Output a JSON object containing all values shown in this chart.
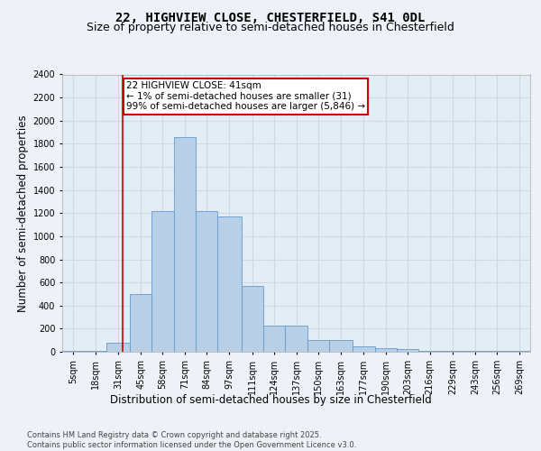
{
  "title_line1": "22, HIGHVIEW CLOSE, CHESTERFIELD, S41 0DL",
  "title_line2": "Size of property relative to semi-detached houses in Chesterfield",
  "xlabel": "Distribution of semi-detached houses by size in Chesterfield",
  "ylabel": "Number of semi-detached properties",
  "footnote": "Contains HM Land Registry data © Crown copyright and database right 2025.\nContains public sector information licensed under the Open Government Licence v3.0.",
  "bar_color": "#b8cfe8",
  "bar_edge_color": "#6699cc",
  "vline_color": "#cc0000",
  "vline_x": 41,
  "annotation_text": "22 HIGHVIEW CLOSE: 41sqm\n← 1% of semi-detached houses are smaller (31)\n99% of semi-detached houses are larger (5,846) →",
  "annotation_box_color": "#cc0000",
  "categories": [
    "5sqm",
    "18sqm",
    "31sqm",
    "45sqm",
    "58sqm",
    "71sqm",
    "84sqm",
    "97sqm",
    "111sqm",
    "124sqm",
    "137sqm",
    "150sqm",
    "163sqm",
    "177sqm",
    "190sqm",
    "203sqm",
    "216sqm",
    "229sqm",
    "243sqm",
    "256sqm",
    "269sqm"
  ],
  "bin_edges": [
    5,
    18,
    31,
    45,
    58,
    71,
    84,
    97,
    111,
    124,
    137,
    150,
    163,
    177,
    190,
    203,
    216,
    229,
    243,
    256,
    269,
    282
  ],
  "values": [
    10,
    10,
    75,
    500,
    1220,
    1860,
    1220,
    1170,
    570,
    230,
    230,
    100,
    100,
    50,
    30,
    20,
    10,
    5,
    5,
    5,
    5
  ],
  "ylim": [
    0,
    2400
  ],
  "yticks": [
    0,
    200,
    400,
    600,
    800,
    1000,
    1200,
    1400,
    1600,
    1800,
    2000,
    2200,
    2400
  ],
  "background_color": "#eef2f8",
  "plot_background": "#e4ecf5",
  "grid_color": "#d0d8e8",
  "title_fontsize": 10,
  "subtitle_fontsize": 9,
  "axis_label_fontsize": 8.5,
  "tick_fontsize": 7,
  "annotation_fontsize": 7.5
}
